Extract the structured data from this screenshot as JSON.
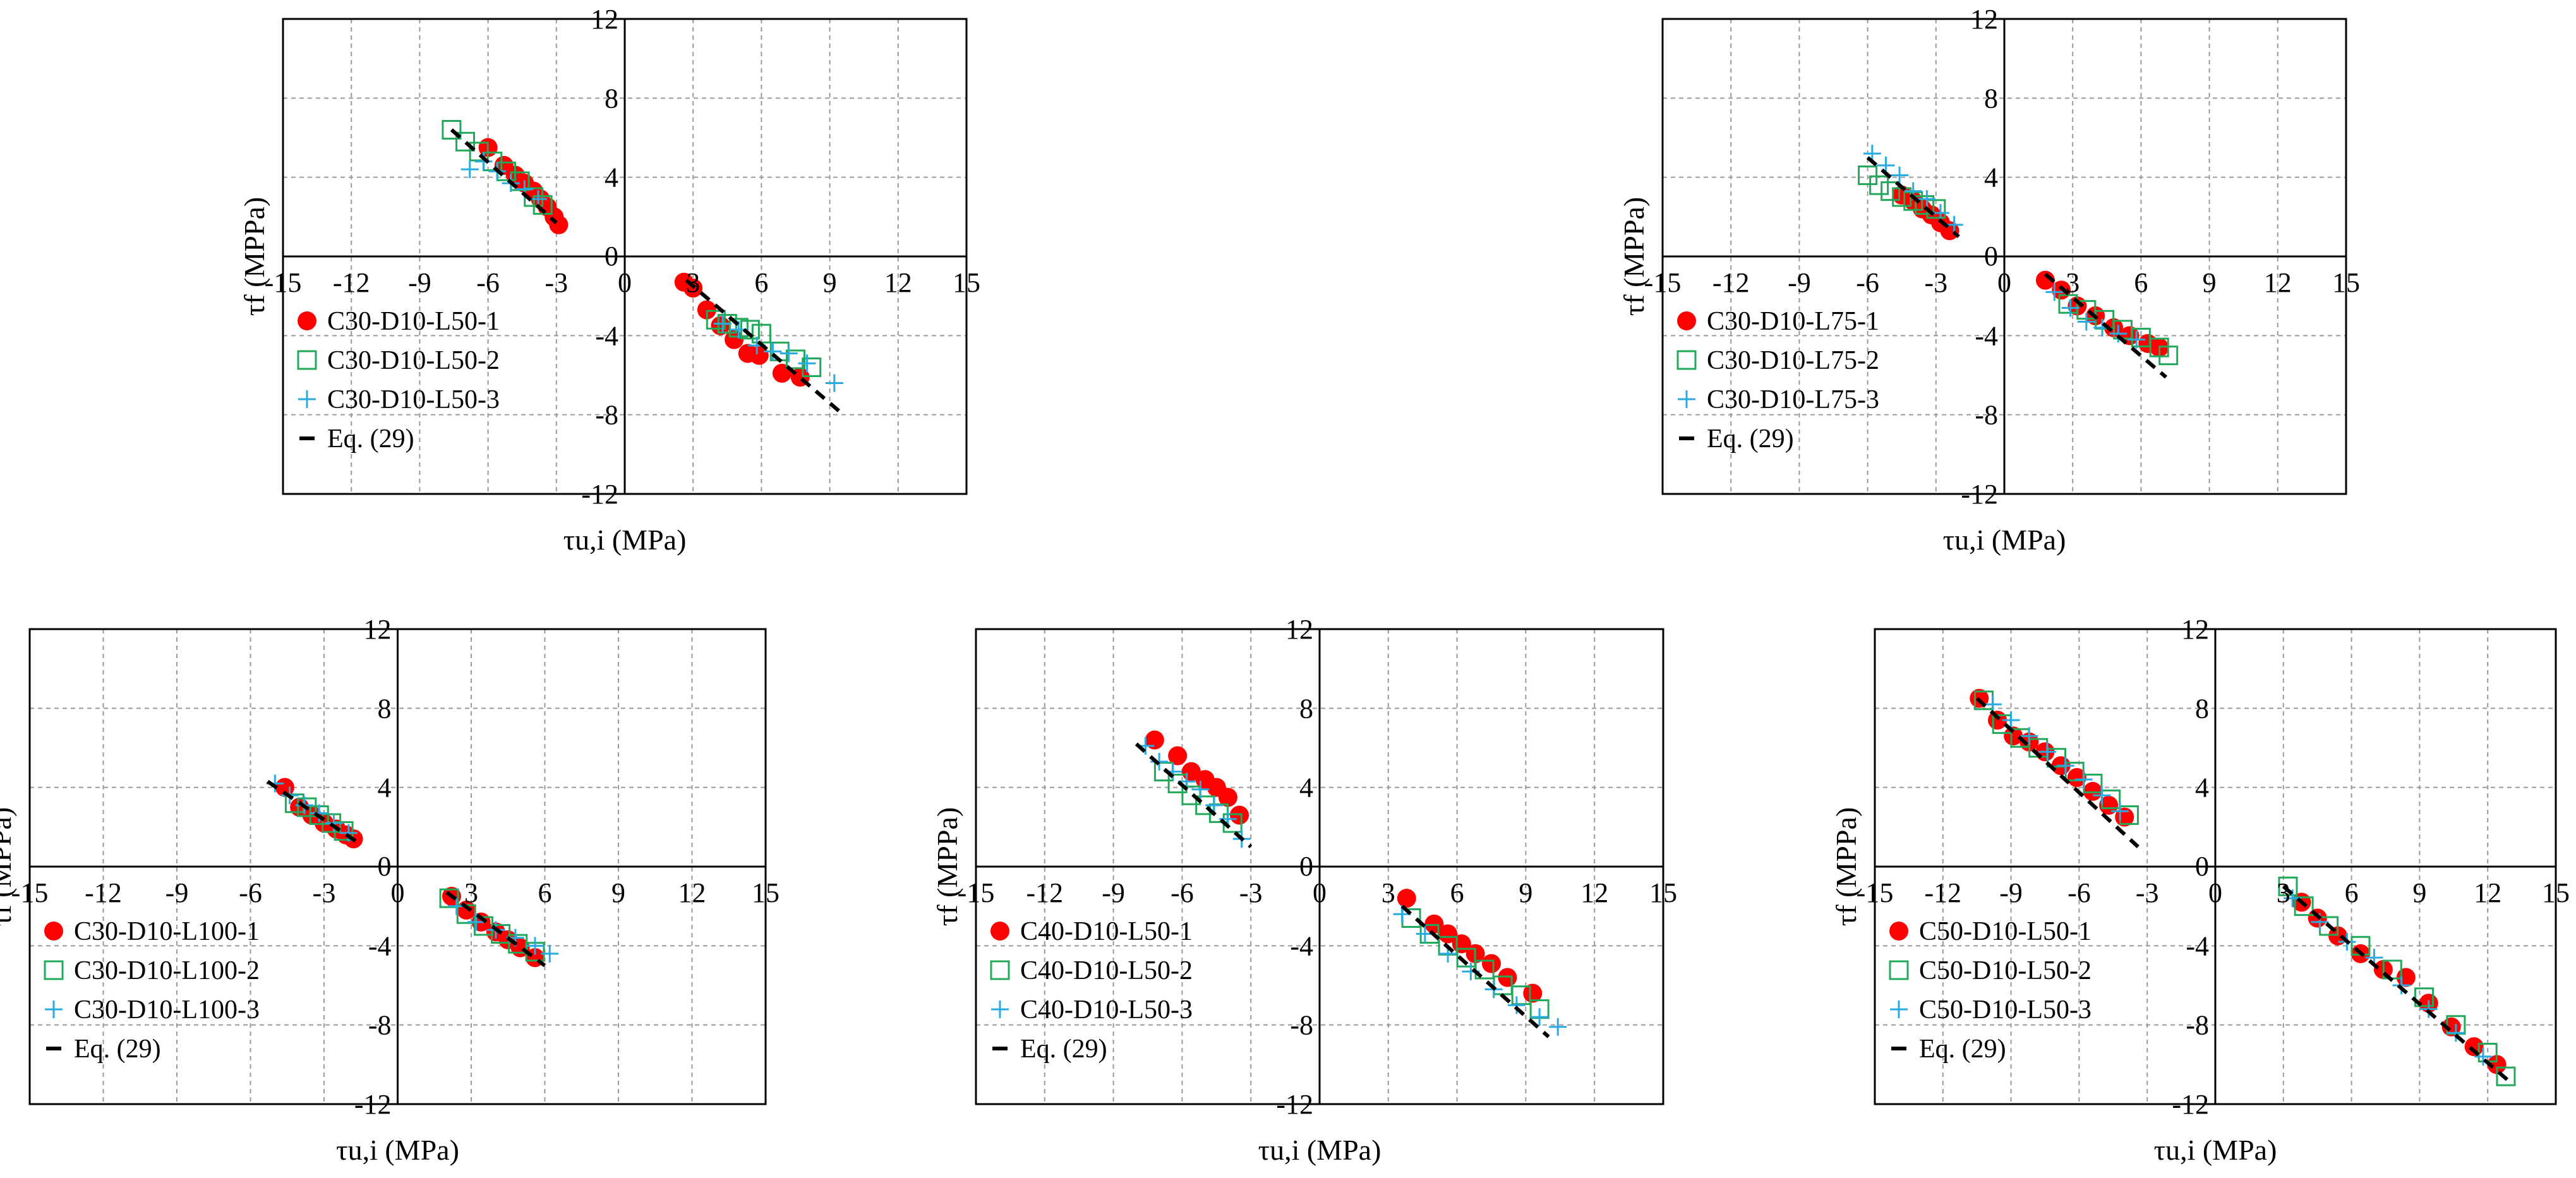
{
  "colors": {
    "series1": "#ff0000",
    "series2": "#21a85a",
    "series3": "#29abe2",
    "fit": "#000000",
    "grid": "#9a9a9a"
  },
  "chart_data": [
    {
      "type": "scatter",
      "xlabel": "τu,i (MPa)",
      "ylabel": "τf (MPPa)",
      "xlim": [
        -15,
        15
      ],
      "ylim": [
        -12,
        12
      ],
      "xticks": [
        "-15",
        "-12",
        "-9",
        "-6",
        "-3",
        "0",
        "3",
        "6",
        "9",
        "12",
        "15"
      ],
      "yticks": [
        "12",
        "8",
        "4",
        "0",
        "-4",
        "-8",
        "-12"
      ],
      "grid": true,
      "series": [
        {
          "name": "C30-D10-L50-1",
          "marker": "circle",
          "x": [
            -6.0,
            -5.3,
            -4.8,
            -4.4,
            -4.0,
            -3.7,
            -3.4,
            -3.1,
            -2.9,
            2.6,
            3.0,
            3.6,
            4.2,
            4.8,
            5.4,
            5.9,
            6.9,
            7.7
          ],
          "y": [
            5.5,
            4.6,
            4.1,
            3.7,
            3.3,
            2.9,
            2.5,
            2.0,
            1.6,
            -1.3,
            -1.6,
            -2.7,
            -3.5,
            -4.2,
            -4.9,
            -5.0,
            -5.9,
            -6.1
          ]
        },
        {
          "name": "C30-D10-L50-2",
          "marker": "square",
          "x": [
            -7.6,
            -7.0,
            -6.4,
            -5.8,
            -5.2,
            -4.6,
            -4.0,
            -3.6,
            4.0,
            4.5,
            5.0,
            5.5,
            6.0,
            6.8,
            7.5,
            8.2
          ],
          "y": [
            6.4,
            5.8,
            5.3,
            4.8,
            4.3,
            3.8,
            3.0,
            2.6,
            -3.2,
            -3.4,
            -3.6,
            -3.7,
            -3.9,
            -4.8,
            -5.2,
            -5.6
          ]
        },
        {
          "name": "C30-D10-L50-3",
          "marker": "plus",
          "x": [
            -6.8,
            -6.2,
            -5.6,
            -5.0,
            -4.4,
            -3.8,
            4.3,
            5.0,
            5.8,
            6.5,
            7.2,
            8.0,
            9.2
          ],
          "y": [
            4.4,
            4.8,
            4.3,
            3.7,
            3.4,
            2.9,
            -3.4,
            -3.7,
            -4.5,
            -4.8,
            -4.9,
            -5.4,
            -6.4
          ]
        },
        {
          "name": "Eq. (29)",
          "marker": "dashed-line",
          "segments": [
            [
              [
                -7.6,
                6.4
              ],
              [
                -3.0,
                1.7
              ]
            ],
            [
              [
                2.7,
                -1.2
              ],
              [
                9.6,
                -8.0
              ]
            ]
          ]
        }
      ]
    },
    {
      "type": "scatter",
      "xlabel": "τu,i (MPa)",
      "ylabel": "τf (MPPa)",
      "xlim": [
        -15,
        15
      ],
      "ylim": [
        -12,
        12
      ],
      "xticks": [
        "-15",
        "-12",
        "-9",
        "-6",
        "-3",
        "0",
        "3",
        "6",
        "9",
        "12",
        "15"
      ],
      "yticks": [
        "12",
        "8",
        "4",
        "0",
        "-4",
        "-8",
        "-12"
      ],
      "grid": true,
      "series": [
        {
          "name": "C30-D10-L75-1",
          "marker": "circle",
          "x": [
            -4.5,
            -4.0,
            -3.6,
            -3.2,
            -2.8,
            -2.4,
            1.8,
            2.5,
            3.2,
            4.0,
            4.8,
            5.5,
            6.3,
            6.8
          ],
          "y": [
            3.1,
            2.8,
            2.4,
            2.1,
            1.7,
            1.3,
            -1.2,
            -1.7,
            -2.5,
            -3.0,
            -3.6,
            -4.0,
            -4.4,
            -4.6
          ]
        },
        {
          "name": "C30-D10-L75-2",
          "marker": "square",
          "x": [
            -6.0,
            -5.5,
            -5.0,
            -4.5,
            -4.0,
            -3.5,
            -3.0,
            2.8,
            3.6,
            4.4,
            5.2,
            6.0,
            6.8,
            7.2
          ],
          "y": [
            4.1,
            3.6,
            3.3,
            3.0,
            2.8,
            2.6,
            2.4,
            -2.4,
            -2.7,
            -3.2,
            -3.7,
            -4.1,
            -4.6,
            -5.0
          ]
        },
        {
          "name": "C30-D10-L75-3",
          "marker": "plus",
          "x": [
            -5.8,
            -5.2,
            -4.6,
            -4.0,
            -3.4,
            -2.8,
            -2.2,
            2.2,
            2.9,
            3.6,
            4.3,
            5.0,
            5.8
          ],
          "y": [
            5.2,
            4.6,
            4.1,
            3.3,
            2.9,
            2.2,
            1.6,
            -1.8,
            -2.6,
            -3.3,
            -3.6,
            -3.9,
            -4.2
          ]
        },
        {
          "name": "Eq. (29)",
          "marker": "dashed-line",
          "segments": [
            [
              [
                -6.0,
                5.0
              ],
              [
                -2.0,
                1.0
              ]
            ],
            [
              [
                1.8,
                -0.9
              ],
              [
                7.1,
                -6.1
              ]
            ]
          ]
        }
      ]
    },
    {
      "type": "scatter",
      "xlabel": "τu,i (MPa)",
      "ylabel": "τf (MPPa)",
      "xlim": [
        -15,
        15
      ],
      "ylim": [
        -12,
        12
      ],
      "xticks": [
        "-15",
        "-12",
        "-9",
        "-6",
        "-3",
        "0",
        "3",
        "6",
        "9",
        "12",
        "15"
      ],
      "yticks": [
        "12",
        "8",
        "4",
        "0",
        "-4",
        "-8",
        "-12"
      ],
      "grid": true,
      "series": [
        {
          "name": "C30-D10-L100-1",
          "marker": "circle",
          "x": [
            -4.6,
            -4.0,
            -3.5,
            -3.0,
            -2.5,
            -2.1,
            -1.8,
            2.2,
            2.8,
            3.4,
            4.0,
            4.5,
            5.0,
            5.6
          ],
          "y": [
            4.0,
            3.0,
            2.6,
            2.2,
            1.9,
            1.6,
            1.4,
            -1.5,
            -2.2,
            -2.8,
            -3.3,
            -3.7,
            -4.1,
            -4.6
          ]
        },
        {
          "name": "C30-D10-L100-2",
          "marker": "square",
          "x": [
            -4.2,
            -3.7,
            -3.2,
            -2.7,
            -2.2,
            2.1,
            2.8,
            3.5,
            4.2,
            4.9,
            5.6
          ],
          "y": [
            3.2,
            3.0,
            2.6,
            2.2,
            1.8,
            -1.6,
            -2.4,
            -3.0,
            -3.4,
            -3.9,
            -4.3
          ]
        },
        {
          "name": "C30-D10-L100-3",
          "marker": "plus",
          "x": [
            -5.0,
            -4.4,
            -3.8,
            -3.2,
            -2.6,
            -2.0,
            2.4,
            3.2,
            4.0,
            4.8,
            5.6,
            6.2
          ],
          "y": [
            4.2,
            3.6,
            3.1,
            2.7,
            2.2,
            1.7,
            -2.0,
            -2.8,
            -3.2,
            -3.6,
            -4.0,
            -4.4
          ]
        },
        {
          "name": "Eq. (29)",
          "marker": "dashed-line",
          "segments": [
            [
              [
                -5.3,
                4.3
              ],
              [
                -1.6,
                1.2
              ]
            ],
            [
              [
                2.0,
                -1.3
              ],
              [
                6.0,
                -5.0
              ]
            ]
          ]
        }
      ]
    },
    {
      "type": "scatter",
      "xlabel": "τu,i (MPa)",
      "ylabel": "τf (MPPa)",
      "xlim": [
        -15,
        15
      ],
      "ylim": [
        -12,
        12
      ],
      "xticks": [
        "-15",
        "-12",
        "-9",
        "-6",
        "-3",
        "0",
        "3",
        "6",
        "9",
        "12",
        "15"
      ],
      "yticks": [
        "12",
        "8",
        "4",
        "0",
        "-4",
        "-8",
        "-12"
      ],
      "grid": true,
      "series": [
        {
          "name": "C40-D10-L50-1",
          "marker": "circle",
          "x": [
            -7.2,
            -6.2,
            -5.6,
            -5.0,
            -4.5,
            -4.0,
            -3.5,
            3.8,
            5.0,
            5.6,
            6.2,
            6.8,
            7.5,
            8.2,
            9.3
          ],
          "y": [
            6.4,
            5.6,
            4.8,
            4.4,
            4.0,
            3.5,
            2.6,
            -1.6,
            -2.9,
            -3.4,
            -3.9,
            -4.4,
            -4.9,
            -5.6,
            -6.4
          ]
        },
        {
          "name": "C40-D10-L50-2",
          "marker": "square",
          "x": [
            -6.8,
            -6.2,
            -5.6,
            -5.0,
            -4.4,
            -3.8,
            4.0,
            4.8,
            5.6,
            6.4,
            7.2,
            8.0,
            8.8,
            9.6
          ],
          "y": [
            4.8,
            4.2,
            3.6,
            3.1,
            2.7,
            2.2,
            -2.6,
            -3.4,
            -4.0,
            -4.6,
            -5.2,
            -6.0,
            -6.5,
            -7.2
          ]
        },
        {
          "name": "C40-D10-L50-3",
          "marker": "plus",
          "x": [
            -7.6,
            -7.0,
            -6.4,
            -5.8,
            -5.2,
            -4.6,
            -4.0,
            -3.4,
            3.6,
            4.6,
            5.6,
            6.6,
            7.6,
            8.6,
            9.6,
            10.4
          ],
          "y": [
            6.1,
            5.3,
            4.8,
            4.3,
            3.9,
            3.1,
            2.4,
            1.4,
            -2.4,
            -3.4,
            -4.4,
            -5.3,
            -6.2,
            -7.0,
            -7.6,
            -8.1
          ]
        },
        {
          "name": "Eq. (29)",
          "marker": "dashed-line",
          "segments": [
            [
              [
                -8.0,
                6.2
              ],
              [
                -3.0,
                1.0
              ]
            ],
            [
              [
                3.6,
                -2.0
              ],
              [
                10.0,
                -8.6
              ]
            ]
          ]
        }
      ]
    },
    {
      "type": "scatter",
      "xlabel": "τu,i (MPa)",
      "ylabel": "τf (MPPa)",
      "xlim": [
        -15,
        15
      ],
      "ylim": [
        -12,
        12
      ],
      "xticks": [
        "-15",
        "-12",
        "-9",
        "-6",
        "-3",
        "0",
        "3",
        "6",
        "9",
        "12",
        "15"
      ],
      "yticks": [
        "12",
        "8",
        "4",
        "0",
        "-4",
        "-8",
        "-12"
      ],
      "grid": true,
      "series": [
        {
          "name": "C50-D10-L50-1",
          "marker": "circle",
          "x": [
            -10.4,
            -9.6,
            -8.9,
            -8.2,
            -7.5,
            -6.8,
            -6.1,
            -5.4,
            -4.7,
            -4.0,
            3.8,
            4.5,
            5.4,
            6.4,
            7.4,
            8.4,
            9.4,
            10.4,
            11.4,
            12.4
          ],
          "y": [
            8.5,
            7.4,
            6.6,
            6.3,
            5.8,
            5.1,
            4.5,
            3.8,
            3.1,
            2.5,
            -1.8,
            -2.6,
            -3.5,
            -4.4,
            -5.2,
            -5.6,
            -6.9,
            -8.1,
            -9.1,
            -10.0
          ]
        },
        {
          "name": "C50-D10-L50-2",
          "marker": "square",
          "x": [
            -10.2,
            -9.4,
            -8.6,
            -7.8,
            -7.0,
            -6.2,
            -5.4,
            -4.6,
            -3.8,
            3.2,
            3.9,
            5.0,
            6.4,
            7.8,
            9.2,
            10.6,
            12.0,
            12.8
          ],
          "y": [
            8.4,
            7.2,
            6.5,
            6.0,
            5.5,
            4.8,
            4.2,
            3.4,
            2.6,
            -1.0,
            -2.0,
            -3.0,
            -4.0,
            -5.2,
            -6.6,
            -8.0,
            -9.4,
            -10.6
          ]
        },
        {
          "name": "C50-D10-L50-3",
          "marker": "plus",
          "x": [
            -9.8,
            -9.0,
            -8.2,
            -7.4,
            -6.6,
            -5.8,
            -5.0,
            -4.2,
            3.4,
            4.6,
            5.8,
            7.0,
            8.2,
            9.4,
            10.6,
            11.8
          ],
          "y": [
            8.2,
            7.4,
            6.6,
            5.8,
            5.1,
            4.4,
            3.6,
            2.8,
            -1.6,
            -2.8,
            -3.8,
            -4.6,
            -6.0,
            -7.2,
            -8.4,
            -9.6
          ]
        },
        {
          "name": "Eq. (29)",
          "marker": "dashed-line",
          "segments": [
            [
              [
                -10.5,
                8.5
              ],
              [
                -3.4,
                1.0
              ]
            ],
            [
              [
                3.0,
                -1.0
              ],
              [
                13.0,
                -10.9
              ]
            ]
          ]
        }
      ]
    }
  ]
}
